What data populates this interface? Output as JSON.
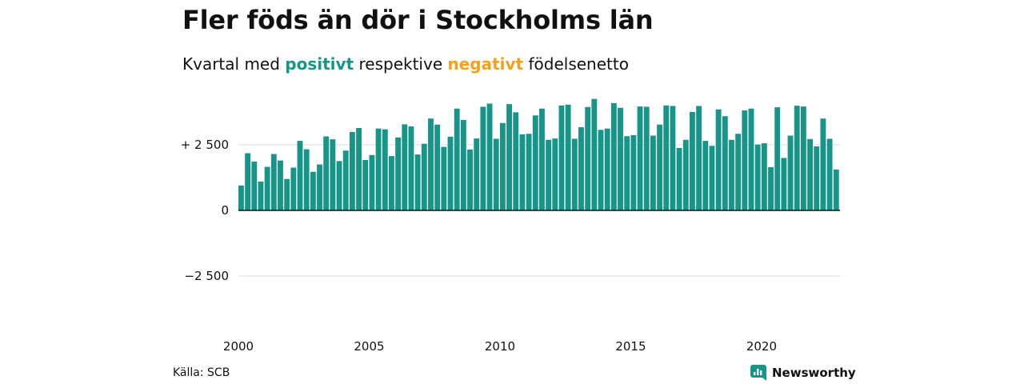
{
  "colors": {
    "positive": "#179588",
    "negative": "#f0a21e",
    "text": "#111111",
    "grid": "#d9d9d9"
  },
  "header": {
    "title": "Fler föds än dör i Stockholms län",
    "subtitle_prefix": "Kvartal med",
    "subtitle_positive": "positivt",
    "subtitle_middle": "respektive",
    "subtitle_negative": "negativt",
    "subtitle_suffix": "födelsenetto"
  },
  "footer": {
    "source": "Källa: SCB",
    "brand": "Newsworthy",
    "brand_icon": "newsworthy-logo-icon"
  },
  "chart_data": {
    "type": "bar",
    "title": "Fler föds än dör i Stockholms län",
    "subtitle": "Kvartal med positivt respektive negativt födelsenetto",
    "xlabel": "",
    "ylabel": "",
    "ylim": [
      -4300,
      4400
    ],
    "yticks": [
      -2500,
      0,
      2500
    ],
    "ytick_labels": [
      "−2 500",
      "0",
      "+ 2 500"
    ],
    "xticks": [
      2000,
      2005,
      2010,
      2015,
      2020
    ],
    "xtick_labels": [
      "2000",
      "2005",
      "2010",
      "2015",
      "2020"
    ],
    "grid": true,
    "start_year": 2000,
    "periods_per_year": 4,
    "series": [
      {
        "values": [
          950,
          2180,
          1860,
          1100,
          1660,
          2150,
          1900,
          1200,
          1630,
          2650,
          2330,
          1470,
          1750,
          2820,
          2710,
          1880,
          2280,
          2990,
          3140,
          1920,
          2110,
          3120,
          3090,
          2070,
          2780,
          3280,
          3200,
          2130,
          2540,
          3500,
          3270,
          2420,
          2810,
          3880,
          3450,
          2320,
          2740,
          3950,
          4070,
          2730,
          3330,
          4050,
          3740,
          2900,
          2920,
          3620,
          3880,
          2690,
          2740,
          4000,
          4030,
          2730,
          3170,
          3940,
          4250,
          3070,
          3120,
          4090,
          3910,
          2830,
          2870,
          3960,
          3950,
          2850,
          3270,
          4000,
          3980,
          2380,
          2690,
          3750,
          3980,
          2650,
          2460,
          3850,
          3590,
          2690,
          2920,
          3810,
          3880,
          2510,
          2560,
          1650,
          3930,
          2000,
          2850,
          3990,
          3960,
          2720,
          2440,
          3500,
          2730,
          1560
        ]
      }
    ]
  }
}
